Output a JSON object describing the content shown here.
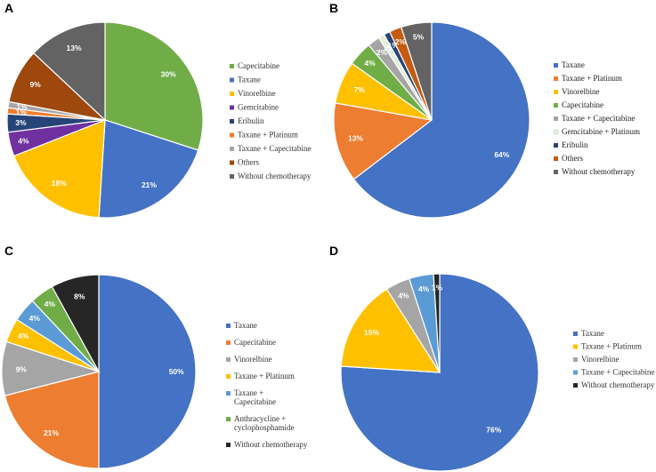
{
  "chart_data": [
    {
      "type": "pie",
      "panel": "A",
      "slices": [
        {
          "label": "Capecitabine",
          "value": 30,
          "display": "30%",
          "color": "#70ad47"
        },
        {
          "label": "Taxane",
          "value": 21,
          "display": "21%",
          "color": "#4472c4"
        },
        {
          "label": "Vinorelbine",
          "value": 18,
          "display": "18%",
          "color": "#ffc000"
        },
        {
          "label": "Gemcitabine",
          "value": 4,
          "display": "4%",
          "color": "#7030a0"
        },
        {
          "label": "Eribulin",
          "value": 3,
          "display": "3%",
          "color": "#264478"
        },
        {
          "label": "Taxane + Platinum",
          "value": 1,
          "display": "1%",
          "color": "#ed7d31"
        },
        {
          "label": "Taxane + Capecitabine",
          "value": 1,
          "display": "1%",
          "color": "#a5a5a5"
        },
        {
          "label": "Others",
          "value": 9,
          "display": "9%",
          "color": "#9e480e"
        },
        {
          "label": "Without chemotherapy",
          "value": 13,
          "display": "13%",
          "color": "#636363"
        }
      ]
    },
    {
      "type": "pie",
      "panel": "B",
      "slices": [
        {
          "label": "Taxane",
          "value": 64,
          "display": "64%",
          "color": "#4472c4"
        },
        {
          "label": "Taxane + Platinum",
          "value": 13,
          "display": "13%",
          "color": "#ed7d31"
        },
        {
          "label": "Vinorelbine",
          "value": 7,
          "display": "7%",
          "color": "#ffc000"
        },
        {
          "label": "Capecitabine",
          "value": 4,
          "display": "4%",
          "color": "#70ad47"
        },
        {
          "label": "Taxane + Capecitabine",
          "value": 2,
          "display": "2%",
          "color": "#a5a5a5"
        },
        {
          "label": "Gemcitabine + Platinum",
          "value": 1,
          "display": "1%",
          "color": "#e2efda"
        },
        {
          "label": "Eribulin",
          "value": 1,
          "display": "1%",
          "color": "#264478"
        },
        {
          "label": "Others",
          "value": 2,
          "display": "2%",
          "color": "#c55a11"
        },
        {
          "label": "Without chemotherapy",
          "value": 5,
          "display": "5%",
          "color": "#636363"
        }
      ]
    },
    {
      "type": "pie",
      "panel": "C",
      "slices": [
        {
          "label": "Taxane",
          "value": 50,
          "display": "50%",
          "color": "#4472c4"
        },
        {
          "label": "Capecitabine",
          "value": 21,
          "display": "21%",
          "color": "#ed7d31"
        },
        {
          "label": "Vinorelbine",
          "value": 9,
          "display": "9%",
          "color": "#a5a5a5"
        },
        {
          "label": "Taxane + Platinum",
          "value": 4,
          "display": "4%",
          "color": "#ffc000"
        },
        {
          "label": "Taxane + Capecitabine",
          "value": 4,
          "display": "4%",
          "color": "#5b9bd5"
        },
        {
          "label": "Anthracycline + cyclophosphamide",
          "value": 4,
          "display": "4%",
          "color": "#70ad47"
        },
        {
          "label": "Without chemotherapy",
          "value": 8,
          "display": "8%",
          "color": "#262626"
        }
      ]
    },
    {
      "type": "pie",
      "panel": "D",
      "slices": [
        {
          "label": "Taxane",
          "value": 76,
          "display": "76%",
          "color": "#4472c4"
        },
        {
          "label": "Taxane + Platinum",
          "value": 15,
          "display": "15%",
          "color": "#ffc000"
        },
        {
          "label": "Vinorelbine",
          "value": 4,
          "display": "4%",
          "color": "#a5a5a5"
        },
        {
          "label": "Taxane + Capecitabine",
          "value": 4,
          "display": "4%",
          "color": "#5b9bd5"
        },
        {
          "label": "Without chemotherapy",
          "value": 1,
          "display": "1%",
          "color": "#262626"
        }
      ]
    }
  ]
}
